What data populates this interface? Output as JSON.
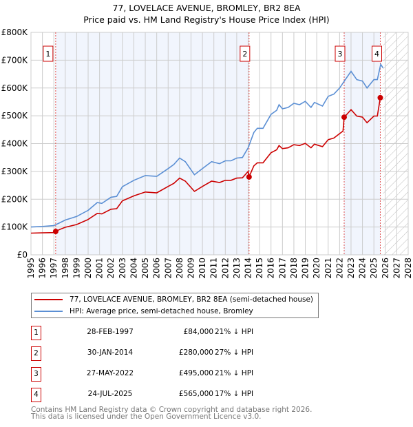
{
  "chart_data": {
    "type": "line",
    "title": "77, LOVELACE AVENUE, BROMLEY, BR2 8EA",
    "subtitle": "Price paid vs. HM Land Registry's House Price Index (HPI)",
    "xlim": [
      1995,
      2028
    ],
    "ylim": [
      0,
      800000
    ],
    "x_ticks": [
      "1995",
      "1996",
      "1997",
      "1998",
      "1999",
      "2000",
      "2001",
      "2002",
      "2003",
      "2004",
      "2005",
      "2006",
      "2007",
      "2008",
      "2009",
      "2010",
      "2011",
      "2012",
      "2013",
      "2014",
      "2015",
      "2016",
      "2017",
      "2018",
      "2019",
      "2020",
      "2021",
      "2022",
      "2023",
      "2024",
      "2025",
      "2026",
      "2027",
      "2028"
    ],
    "y_ticks": [
      {
        "v": 0,
        "label": "£0"
      },
      {
        "v": 100000,
        "label": "£100K"
      },
      {
        "v": 200000,
        "label": "£200K"
      },
      {
        "v": 300000,
        "label": "£300K"
      },
      {
        "v": 400000,
        "label": "£400K"
      },
      {
        "v": 500000,
        "label": "£500K"
      },
      {
        "v": 600000,
        "label": "£600K"
      },
      {
        "v": 700000,
        "label": "£700K"
      },
      {
        "v": 800000,
        "label": "£800K"
      }
    ],
    "grid": true,
    "forecast_start": 2025.8,
    "shaded_ranges": [
      [
        1997.16,
        2014.08
      ],
      [
        2022.4,
        2025.56
      ]
    ],
    "series": [
      {
        "name": "77, LOVELACE AVENUE, BROMLEY, BR2 8EA (semi-detached house)",
        "color": "#cc0000",
        "x": [
          1995,
          1996,
          1997,
          1997.16,
          1997.5,
          1998,
          1999,
          2000,
          2000.8,
          2001.2,
          2002,
          2002.5,
          2003,
          2004,
          2005,
          2006,
          2007,
          2007.5,
          2008,
          2008.5,
          2009.3,
          2010,
          2010.8,
          2011.5,
          2012,
          2012.5,
          2013,
          2013.5,
          2014,
          2014.08,
          2014.5,
          2014.8,
          2015.3,
          2016,
          2016.5,
          2016.7,
          2017,
          2017.5,
          2018,
          2018.5,
          2019,
          2019.5,
          2019.8,
          2020.5,
          2021,
          2021.5,
          2022,
          2022.3,
          2022.4,
          2022.5,
          2023,
          2023.5,
          2024,
          2024.4,
          2025,
          2025.3,
          2025.56
        ],
        "y": [
          78000,
          79000,
          80000,
          84000,
          91000,
          99000,
          109000,
          127000,
          149000,
          147000,
          164000,
          166000,
          194000,
          212000,
          226000,
          223000,
          246000,
          257000,
          276000,
          265000,
          228000,
          246000,
          265000,
          260000,
          268000,
          268000,
          276000,
          277000,
          300000,
          280000,
          320000,
          331000,
          331000,
          367000,
          378000,
          393000,
          382000,
          385000,
          396000,
          393000,
          401000,
          385000,
          398000,
          389000,
          414000,
          420000,
          436000,
          445000,
          495000,
          499000,
          522000,
          499000,
          495000,
          475000,
          499000,
          499000,
          565000
        ]
      },
      {
        "name": "HPI: Average price, semi-detached house, Bromley",
        "color": "#5b8fd4",
        "x": [
          1995,
          1996,
          1997,
          1997.5,
          1998,
          1999,
          2000,
          2000.8,
          2001.2,
          2002,
          2002.5,
          2003,
          2004,
          2005,
          2006,
          2007,
          2007.5,
          2008,
          2008.5,
          2009.3,
          2010,
          2010.8,
          2011.5,
          2012,
          2012.5,
          2013,
          2013.5,
          2014,
          2014.5,
          2014.8,
          2015.3,
          2016,
          2016.5,
          2016.7,
          2017,
          2017.5,
          2018,
          2018.5,
          2019,
          2019.5,
          2019.8,
          2020.5,
          2021,
          2021.5,
          2022,
          2022.5,
          2023,
          2023.5,
          2024,
          2024.4,
          2025,
          2025.3,
          2025.6,
          2025.8
        ],
        "y": [
          100000,
          102000,
          105000,
          115000,
          125000,
          138000,
          160000,
          188000,
          185000,
          207000,
          210000,
          245000,
          268000,
          285000,
          282000,
          310000,
          325000,
          348000,
          335000,
          288000,
          310000,
          335000,
          328000,
          338000,
          338000,
          348000,
          350000,
          385000,
          440000,
          455000,
          455000,
          505000,
          520000,
          540000,
          525000,
          530000,
          545000,
          540000,
          552000,
          530000,
          548000,
          535000,
          570000,
          578000,
          600000,
          630000,
          660000,
          630000,
          625000,
          600000,
          630000,
          630000,
          685000,
          672000
        ]
      }
    ],
    "sales": [
      {
        "n": "1",
        "x": 1997.16,
        "y": 84000,
        "date": "28-FEB-1997",
        "price": "£84,000",
        "hpi": "21% ↓ HPI"
      },
      {
        "n": "2",
        "x": 2014.08,
        "y": 280000,
        "date": "30-JAN-2014",
        "price": "£280,000",
        "hpi": "27% ↓ HPI"
      },
      {
        "n": "3",
        "x": 2022.4,
        "y": 495000,
        "date": "27-MAY-2022",
        "price": "£495,000",
        "hpi": "21% ↓ HPI"
      },
      {
        "n": "4",
        "x": 2025.56,
        "y": 565000,
        "date": "24-JUL-2025",
        "price": "£565,000",
        "hpi": "17% ↓ HPI"
      }
    ]
  },
  "legend": {
    "property": "77, LOVELACE AVENUE, BROMLEY, BR2 8EA (semi-detached house)",
    "hpi": "HPI: Average price, semi-detached house, Bromley"
  },
  "footer": {
    "line1": "Contains HM Land Registry data © Crown copyright and database right 2026.",
    "line2": "This data is licensed under the Open Government Licence v3.0."
  }
}
